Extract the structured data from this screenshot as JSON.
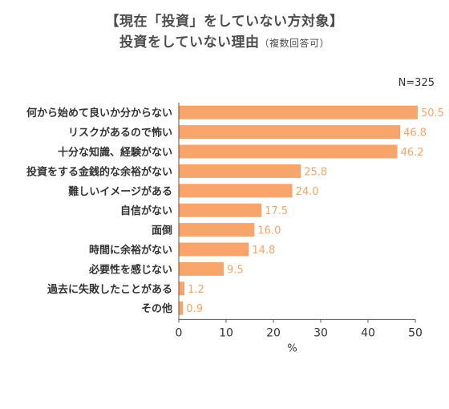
{
  "title": {
    "line1": "【現在「投資」をしていない方対象】",
    "line2_main": "投資をしていない理由",
    "line2_sub": "（複数回答可）"
  },
  "note": "N=325",
  "colors": {
    "bar": "#F7A56A",
    "value_label": "#F7A56A",
    "axis": "#555555",
    "text": "#333333"
  },
  "chart_data": {
    "type": "bar",
    "orientation": "horizontal",
    "categories": [
      "何から始めて良いか分からない",
      "リスクがあるので怖い",
      "十分な知識、経験がない",
      "投資をする金銭的な余裕がない",
      "難しいイメージがある",
      "自信がない",
      "面倒",
      "時間に余裕がない",
      "必要性を感じない",
      "過去に失敗したことがある",
      "その他"
    ],
    "values": [
      50.5,
      46.8,
      46.2,
      25.8,
      24.0,
      17.5,
      16.0,
      14.8,
      9.5,
      1.2,
      0.9
    ],
    "value_labels": [
      "50.5",
      "46.8",
      "46.2",
      "25.8",
      "24.0",
      "17.5",
      "16.0",
      "14.8",
      "9.5",
      "1.2",
      "0.9"
    ],
    "xlabel": "%",
    "xlim": [
      0,
      50
    ],
    "xticks": [
      "0",
      "10",
      "20",
      "30",
      "40",
      "50"
    ],
    "grid": false,
    "legend": "none"
  }
}
